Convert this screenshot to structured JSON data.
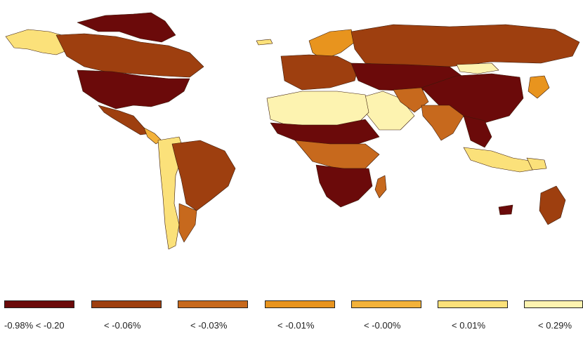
{
  "legend": {
    "items": [
      {
        "label": "-0.98% < -0.20",
        "color": "#6b0a0a"
      },
      {
        "label": "< -0.06%",
        "color": "#9e3f0f"
      },
      {
        "label": "< -0.03%",
        "color": "#c7691d"
      },
      {
        "label": "< -0.01%",
        "color": "#e8941e"
      },
      {
        "label": "< -0.00%",
        "color": "#f3b23a"
      },
      {
        "label": "< 0.01%",
        "color": "#fbe17a"
      },
      {
        "label": "< 0.29%",
        "color": "#fdf3b0"
      }
    ]
  }
}
